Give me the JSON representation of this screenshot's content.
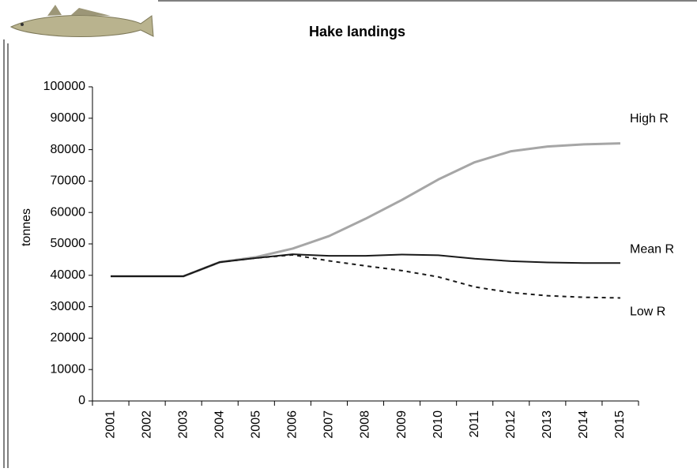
{
  "chart_data": {
    "type": "line",
    "title": "Hake landings",
    "y_label": "tonnes",
    "categories": [
      "2001",
      "2002",
      "2003",
      "2004",
      "2005",
      "2006",
      "2007",
      "2008",
      "2009",
      "2010",
      "2011",
      "2012",
      "2013",
      "2014",
      "2015"
    ],
    "series": [
      {
        "name": "High R",
        "color": "#a6a6a6",
        "width": 3,
        "dash": null,
        "values": [
          39700,
          39700,
          39700,
          44200,
          45800,
          48500,
          52500,
          58000,
          64000,
          70500,
          76000,
          79500,
          81000,
          81700,
          82000
        ]
      },
      {
        "name": "Mean R",
        "color": "#1a1a1a",
        "width": 2,
        "dash": null,
        "values": [
          39700,
          39700,
          39700,
          44200,
          45500,
          46700,
          46200,
          46200,
          46600,
          46400,
          45300,
          44500,
          44100,
          43900,
          43900
        ]
      },
      {
        "name": "Low R",
        "color": "#1a1a1a",
        "width": 2,
        "dash": "5 5",
        "values": [
          39700,
          39700,
          39700,
          44200,
          45500,
          46500,
          44600,
          43000,
          41500,
          39500,
          36300,
          34500,
          33500,
          33000,
          32800
        ]
      }
    ],
    "ylim": [
      0,
      100000
    ],
    "yticks": [
      0,
      10000,
      20000,
      30000,
      40000,
      50000,
      60000,
      70000,
      80000,
      90000,
      100000
    ],
    "grid": false
  }
}
